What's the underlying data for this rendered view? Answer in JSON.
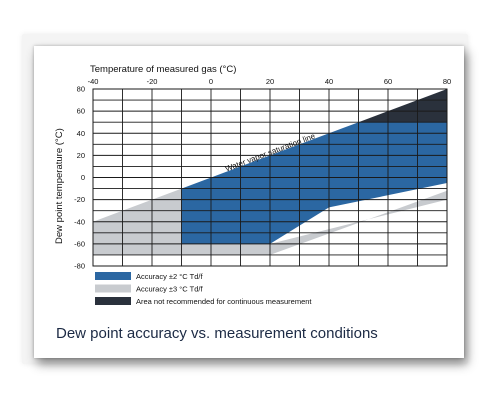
{
  "caption": "Dew point accuracy vs. measurement conditions",
  "colors": {
    "accuracy_2": "#2b67a2",
    "accuracy_3": "#c8cbcf",
    "not_recommended": "#2a313c",
    "grid": "#1a1a1a"
  },
  "chart_data": {
    "type": "area",
    "title": "",
    "xlabel": "Temperature of measured gas (°C)",
    "ylabel": "Dew point temperature (°C)",
    "xlim": [
      -40,
      80
    ],
    "ylim": [
      -80,
      80
    ],
    "x_ticks": [
      -40,
      -20,
      0,
      20,
      40,
      60,
      80
    ],
    "y_ticks": [
      80,
      60,
      40,
      20,
      0,
      -20,
      -40,
      -60,
      -80
    ],
    "grid": true,
    "annotations": [
      {
        "text": "Water vapor saturation line",
        "x": 10,
        "y": 18
      }
    ],
    "series": [
      {
        "name": "Accuracy ±3 °C Td/f",
        "color": "#c8cbcf",
        "polygon": [
          [
            -40,
            -40
          ],
          [
            -10,
            -10
          ],
          [
            -10,
            -60
          ],
          [
            20,
            -60
          ],
          [
            80,
            -20
          ],
          [
            80,
            -12
          ],
          [
            20,
            -70
          ],
          [
            -40,
            -70
          ]
        ]
      },
      {
        "name": "Accuracy ±2 °C Td/f",
        "color": "#2b67a2",
        "polygon": [
          [
            -10,
            -10
          ],
          [
            50,
            50
          ],
          [
            80,
            50
          ],
          [
            80,
            -5
          ],
          [
            40,
            -27
          ],
          [
            20,
            -60
          ],
          [
            -10,
            -60
          ]
        ]
      },
      {
        "name": "Area not recommended for continuous measurement",
        "color": "#2a313c",
        "polygon": [
          [
            50,
            50
          ],
          [
            80,
            80
          ],
          [
            80,
            50
          ]
        ]
      }
    ],
    "legend": {
      "placement": "bottom-left",
      "entries": [
        {
          "label": "Accuracy ±2 °C Td/f",
          "color": "#2b67a2"
        },
        {
          "label": "Accuracy ±3 °C Td/f",
          "color": "#c8cbcf"
        },
        {
          "label": "Area not recommended for continuous measurement",
          "color": "#2a313c"
        }
      ]
    }
  }
}
